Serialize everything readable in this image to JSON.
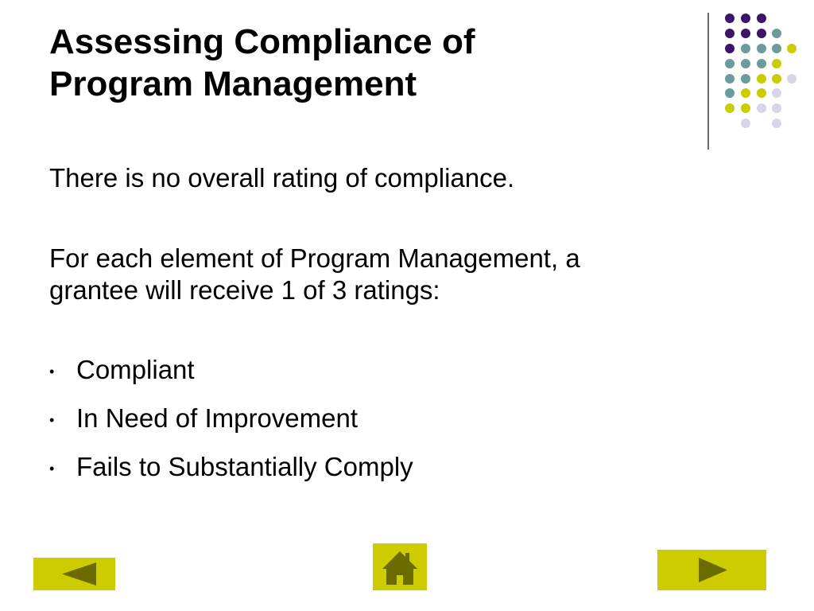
{
  "slide": {
    "title_line1": "Assessing Compliance of",
    "title_line2": "Program Management",
    "paragraph1": "There is no overall rating of compliance.",
    "paragraph2_line1": "For each element of Program Management, a",
    "paragraph2_line2": "grantee will receive 1 of 3 ratings:",
    "bullet_symbol": "•",
    "bullets": [
      "Compliant",
      "In Need of Improvement",
      "Fails to Substantially Comply"
    ]
  },
  "decoration": {
    "dot_colors": {
      "purple": "#3d1469",
      "teal": "#6b9b9c",
      "yellow": "#cccc00",
      "lavender": "#d6d6e8"
    },
    "divider_color": "#6b6b6b"
  },
  "navigation": {
    "button_color": "#cccc00",
    "prev_icon": "triangle-left-icon",
    "home_icon": "house-icon",
    "next_icon": "triangle-right-icon"
  }
}
